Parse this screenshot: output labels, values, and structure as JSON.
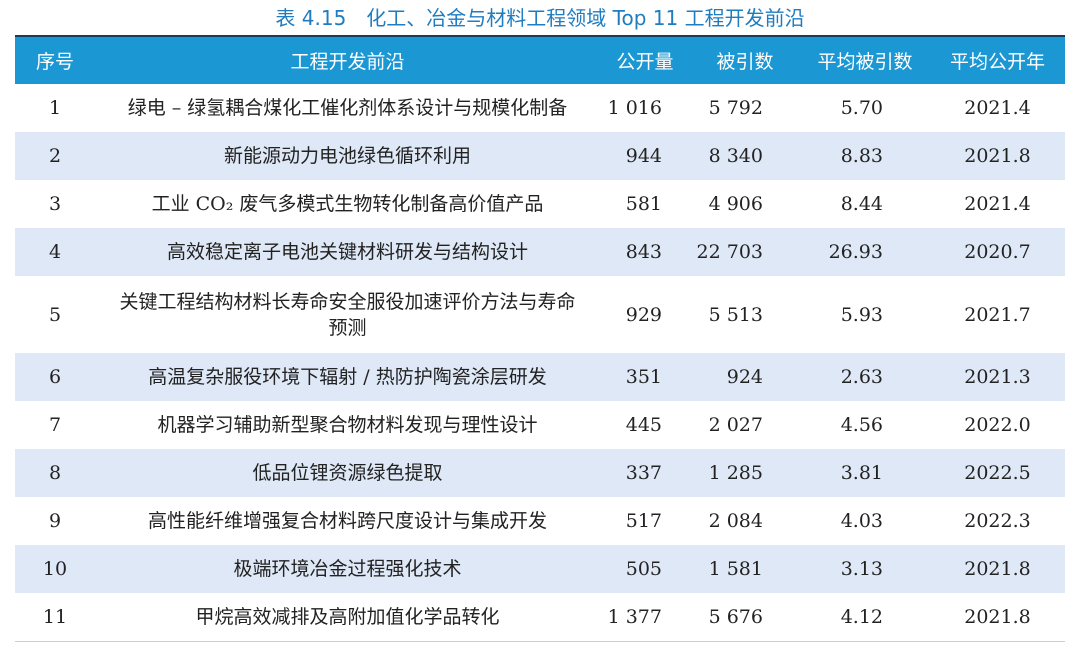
{
  "title": "表 4.15　化工、冶金与材料工程领域 Top 11 工程开发前沿",
  "colors": {
    "header": "#1b98d4",
    "alt_row": "#dfe8f6",
    "title": "#1f7cc0"
  },
  "headers": [
    "序号",
    "工程开发前沿",
    "公开量",
    "被引数",
    "平均被引数",
    "平均公开年"
  ],
  "rows": [
    {
      "no": "1",
      "topic": "绿电 – 绿氢耦合煤化工催化剂体系设计与规模化制备",
      "count": "1 016",
      "cites": "5 792",
      "avg_cites": "5.70",
      "avg_year": "2021.4"
    },
    {
      "no": "2",
      "topic": "新能源动力电池绿色循环利用",
      "count": "944",
      "cites": "8 340",
      "avg_cites": "8.83",
      "avg_year": "2021.8"
    },
    {
      "no": "3",
      "topic": "工业 CO₂ 废气多模式生物转化制备高价值产品",
      "count": "581",
      "cites": "4 906",
      "avg_cites": "8.44",
      "avg_year": "2021.4"
    },
    {
      "no": "4",
      "topic": "高效稳定离子电池关键材料研发与结构设计",
      "count": "843",
      "cites": "22 703",
      "avg_cites": "26.93",
      "avg_year": "2020.7"
    },
    {
      "no": "5",
      "topic": "关键工程结构材料长寿命安全服役加速评价方法与寿命预测",
      "count": "929",
      "cites": "5 513",
      "avg_cites": "5.93",
      "avg_year": "2021.7"
    },
    {
      "no": "6",
      "topic": "高温复杂服役环境下辐射 / 热防护陶瓷涂层研发",
      "count": "351",
      "cites": "924",
      "avg_cites": "2.63",
      "avg_year": "2021.3"
    },
    {
      "no": "7",
      "topic": "机器学习辅助新型聚合物材料发现与理性设计",
      "count": "445",
      "cites": "2 027",
      "avg_cites": "4.56",
      "avg_year": "2022.0"
    },
    {
      "no": "8",
      "topic": "低品位锂资源绿色提取",
      "count": "337",
      "cites": "1 285",
      "avg_cites": "3.81",
      "avg_year": "2022.5"
    },
    {
      "no": "9",
      "topic": "高性能纤维增强复合材料跨尺度设计与集成开发",
      "count": "517",
      "cites": "2 084",
      "avg_cites": "4.03",
      "avg_year": "2022.3"
    },
    {
      "no": "10",
      "topic": "极端环境冶金过程强化技术",
      "count": "505",
      "cites": "1 581",
      "avg_cites": "3.13",
      "avg_year": "2021.8"
    },
    {
      "no": "11",
      "topic": "甲烷高效减排及高附加值化学品转化",
      "count": "1 377",
      "cites": "5 676",
      "avg_cites": "4.12",
      "avg_year": "2021.8"
    }
  ]
}
